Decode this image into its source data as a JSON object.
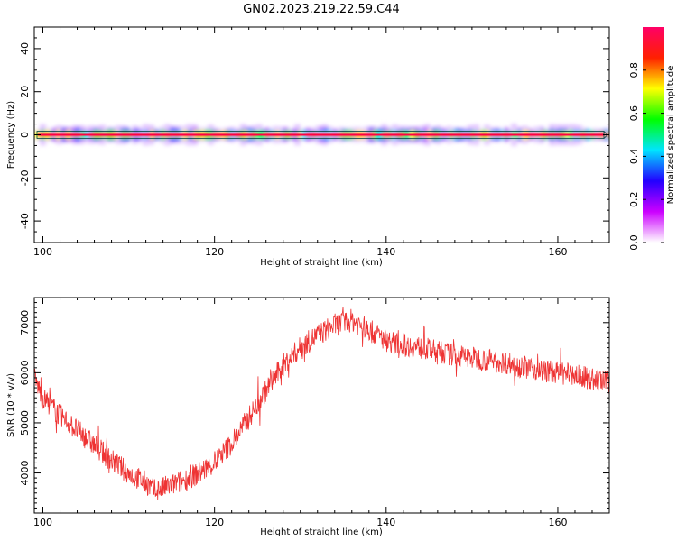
{
  "title": "GN02.2023.219.22.59.C44",
  "chart_data": [
    {
      "type": "heatmap",
      "xlabel": "Height of straight line (km)",
      "ylabel": "Frequency (Hz)",
      "xlim": [
        99,
        166
      ],
      "ylim": [
        -50,
        50
      ],
      "xticks": [
        "100",
        "120",
        "140",
        "160"
      ],
      "yticks": [
        "40",
        "20",
        "0",
        "-20",
        "-40"
      ],
      "band_center_hz": 0,
      "band_core_halfwidth_hz": 1,
      "band_halo_halfwidth_hz": 4,
      "colorbar": {
        "label": "Normalized spectral amplitude",
        "range": [
          0,
          1
        ],
        "ticks": [
          "0.0",
          "0.2",
          "0.4",
          "0.6",
          "0.8"
        ],
        "colormap": [
          "#ffffff",
          "#cc00ff",
          "#2200ff",
          "#00e5ff",
          "#00ff00",
          "#ffff00",
          "#ff2000",
          "#ff0066"
        ]
      }
    },
    {
      "type": "line",
      "xlabel": "Height of straight line (km)",
      "ylabel": "SNR (10 * v/v)",
      "xlim": [
        99,
        166
      ],
      "ylim": [
        3200,
        7500
      ],
      "xticks": [
        "100",
        "120",
        "140",
        "160"
      ],
      "yticks": [
        "4000",
        "5000",
        "6000",
        "7000"
      ],
      "color": "#ee3333",
      "trend_x": [
        99,
        100,
        102,
        104,
        106,
        108,
        110,
        112,
        113,
        114,
        116,
        118,
        120,
        122,
        124,
        126,
        128,
        130,
        132,
        134,
        136,
        138,
        140,
        142,
        144,
        146,
        148,
        150,
        152,
        154,
        156,
        158,
        160,
        162,
        164,
        166
      ],
      "trend_y": [
        5900,
        5500,
        5150,
        4850,
        4550,
        4250,
        4000,
        3800,
        3650,
        3700,
        3820,
        3980,
        4200,
        4600,
        5100,
        5650,
        6150,
        6500,
        6750,
        6950,
        7050,
        6850,
        6650,
        6550,
        6500,
        6420,
        6350,
        6300,
        6250,
        6200,
        6120,
        6050,
        6000,
        5950,
        5870,
        5800
      ]
    }
  ]
}
